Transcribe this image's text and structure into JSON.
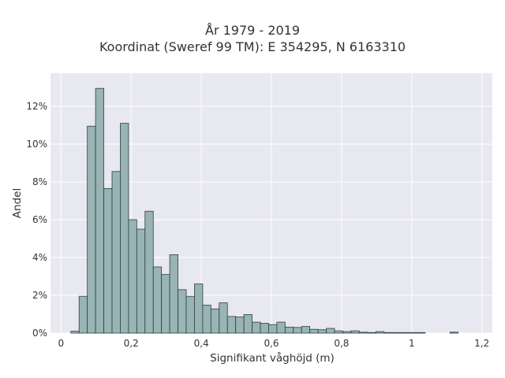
{
  "chart_data": {
    "type": "bar",
    "title": "År 1979 - 2019",
    "subtitle": "Koordinat (Sweref 99 TM): E 354295, N 6163310",
    "xlabel": "Signifikant våghöjd (m)",
    "ylabel": "Andel",
    "xlim": [
      -0.03,
      1.23
    ],
    "ylim": [
      0,
      0.1375
    ],
    "x_ticks": [
      0,
      0.2,
      0.4,
      0.6,
      0.8,
      1,
      1.2
    ],
    "x_tick_labels": [
      "0",
      "0,2",
      "0,4",
      "0,6",
      "0,8",
      "1",
      "1,2"
    ],
    "y_ticks": [
      0,
      0.02,
      0.04,
      0.06,
      0.08,
      0.1,
      0.12
    ],
    "y_tick_labels": [
      "0%",
      "2%",
      "4%",
      "6%",
      "8%",
      "10%",
      "12%"
    ],
    "grid": true,
    "bin_width": 0.0235,
    "bin_start": 0.028,
    "values": [
      0.001,
      0.0195,
      0.1095,
      0.1295,
      0.0765,
      0.0855,
      0.111,
      0.06,
      0.055,
      0.0645,
      0.035,
      0.031,
      0.0415,
      0.023,
      0.0195,
      0.026,
      0.0148,
      0.0128,
      0.016,
      0.0088,
      0.0085,
      0.0098,
      0.0058,
      0.0052,
      0.0045,
      0.0058,
      0.0032,
      0.003,
      0.0035,
      0.002,
      0.0018,
      0.0025,
      0.0012,
      0.0008,
      0.0012,
      0.0005,
      0.0003,
      0.0008,
      0.0003,
      0.0003,
      0.0003,
      0.0003,
      0.0003,
      0,
      0,
      0,
      0.0005,
      0,
      0,
      0,
      0,
      0,
      0
    ],
    "colors": {
      "bar_fill": "#98b4b4",
      "bar_stroke": "#2f3f3f",
      "plot_bg": "#e8e8f0",
      "grid": "#ffffff"
    }
  }
}
